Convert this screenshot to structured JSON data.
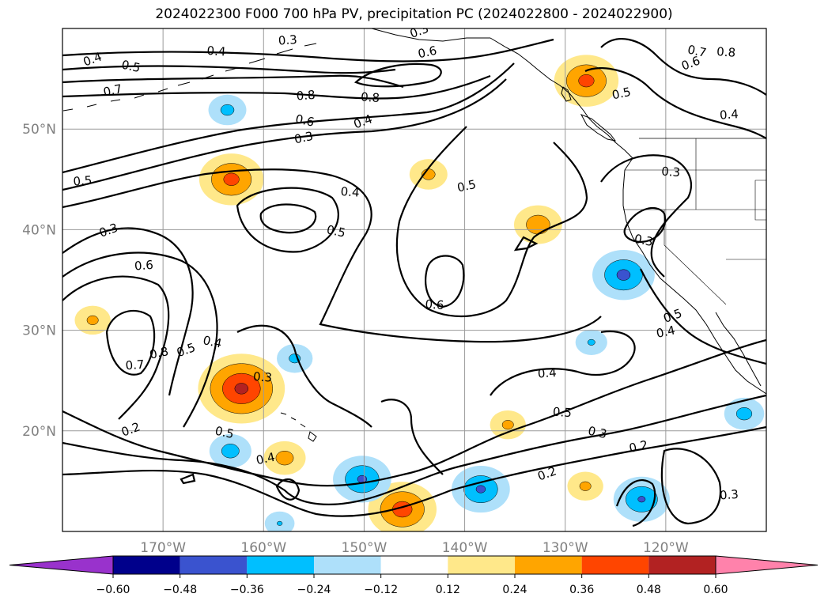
{
  "title": "2024022300 F000 700 hPa PV, precipitation PC (2024022800 - 2024022900)",
  "map": {
    "projection": "PlateCarree",
    "lon_range": [
      -180,
      -110
    ],
    "lat_range": [
      10,
      60
    ],
    "lon_ticks": [
      "170°W",
      "160°W",
      "150°W",
      "140°W",
      "130°W",
      "120°W"
    ],
    "lat_ticks": [
      "50°N",
      "40°N",
      "30°N",
      "20°N"
    ],
    "gridlines": true,
    "coastlines": true,
    "state_borders": true
  },
  "contours": {
    "variable": "700 hPa PV",
    "color": "#000000",
    "labels": [
      {
        "text": "0.3",
        "lon": -144.5,
        "lat": 59.7
      },
      {
        "text": "0.6",
        "lon": -143.7,
        "lat": 57.6
      },
      {
        "text": "0.3",
        "lon": -157.6,
        "lat": 58.8
      },
      {
        "text": "0.4",
        "lon": -164.7,
        "lat": 57.7
      },
      {
        "text": "0.5",
        "lon": -173.2,
        "lat": 56.2
      },
      {
        "text": "0.4",
        "lon": -177.0,
        "lat": 56.9
      },
      {
        "text": "0.7",
        "lon": -175.0,
        "lat": 53.8
      },
      {
        "text": "0.8",
        "lon": -155.8,
        "lat": 53.3
      },
      {
        "text": "0.8",
        "lon": -149.4,
        "lat": 53.1
      },
      {
        "text": "0.6",
        "lon": -155.9,
        "lat": 50.8
      },
      {
        "text": "0.4",
        "lon": -150.1,
        "lat": 50.7
      },
      {
        "text": "0.3",
        "lon": -156.0,
        "lat": 49.1
      },
      {
        "text": "0.5",
        "lon": -178.0,
        "lat": 44.8
      },
      {
        "text": "0.4",
        "lon": -151.4,
        "lat": 43.7
      },
      {
        "text": "0.5",
        "lon": -152.8,
        "lat": 39.8
      },
      {
        "text": "0.3",
        "lon": -175.4,
        "lat": 39.9
      },
      {
        "text": "0.5",
        "lon": -139.8,
        "lat": 44.3
      },
      {
        "text": "0.6",
        "lon": -171.9,
        "lat": 36.4
      },
      {
        "text": "0.6",
        "lon": -143.0,
        "lat": 32.5
      },
      {
        "text": "0.4",
        "lon": -165.1,
        "lat": 28.8
      },
      {
        "text": "0.5",
        "lon": -167.7,
        "lat": 28.0
      },
      {
        "text": "0.8",
        "lon": -170.4,
        "lat": 27.7
      },
      {
        "text": "0.7",
        "lon": -172.8,
        "lat": 26.5
      },
      {
        "text": "0.3",
        "lon": -160.1,
        "lat": 25.3
      },
      {
        "text": "0.5",
        "lon": -163.9,
        "lat": 19.8
      },
      {
        "text": "0.2",
        "lon": -173.2,
        "lat": 20.1
      },
      {
        "text": "0.4",
        "lon": -159.8,
        "lat": 17.2
      },
      {
        "text": "0.4",
        "lon": -131.8,
        "lat": 25.7
      },
      {
        "text": "0.5",
        "lon": -130.3,
        "lat": 21.8
      },
      {
        "text": "0.3",
        "lon": -126.8,
        "lat": 19.8
      },
      {
        "text": "0.2",
        "lon": -131.8,
        "lat": 15.7
      },
      {
        "text": "0.2",
        "lon": -122.7,
        "lat": 18.4
      },
      {
        "text": "0.3",
        "lon": -113.7,
        "lat": 13.6
      },
      {
        "text": "0.8",
        "lon": -114.0,
        "lat": 57.6
      },
      {
        "text": "0.7",
        "lon": -116.9,
        "lat": 57.7
      },
      {
        "text": "0.6",
        "lon": -117.5,
        "lat": 56.5
      },
      {
        "text": "0.5",
        "lon": -124.4,
        "lat": 53.5
      },
      {
        "text": "0.4",
        "lon": -113.7,
        "lat": 51.4
      },
      {
        "text": "0.3",
        "lon": -119.5,
        "lat": 45.7
      },
      {
        "text": "0.3",
        "lon": -122.2,
        "lat": 38.9
      },
      {
        "text": "0.5",
        "lon": -119.3,
        "lat": 31.4
      },
      {
        "text": "0.4",
        "lon": -120.0,
        "lat": 29.8
      }
    ]
  },
  "shading": {
    "variable": "precipitation PC",
    "levels": [
      -0.6,
      -0.48,
      -0.36,
      -0.24,
      -0.12,
      0.12,
      0.24,
      0.36,
      0.48,
      0.6
    ],
    "colors": [
      "#9932cc",
      "#00008b",
      "#3a53cf",
      "#00bfff",
      "#aee0fa",
      "#ffffff",
      "#ffe88a",
      "#ffa500",
      "#ff4500",
      "#b22222",
      "#ff82ab"
    ],
    "blobs": [
      {
        "lon": -162.2,
        "lat": 24.2,
        "value": 0.52
      },
      {
        "lon": -163.2,
        "lat": 45.0,
        "value": 0.41
      },
      {
        "lon": -146.2,
        "lat": 12.2,
        "value": 0.43
      },
      {
        "lon": -127.9,
        "lat": 54.8,
        "value": 0.41
      },
      {
        "lon": -157.9,
        "lat": 17.3,
        "value": 0.3
      },
      {
        "lon": -143.6,
        "lat": 45.5,
        "value": 0.28
      },
      {
        "lon": -132.7,
        "lat": 40.5,
        "value": 0.33
      },
      {
        "lon": -177.0,
        "lat": 31.0,
        "value": 0.27
      },
      {
        "lon": -135.7,
        "lat": 20.6,
        "value": 0.27
      },
      {
        "lon": -128.0,
        "lat": 14.5,
        "value": 0.27
      },
      {
        "lon": -124.2,
        "lat": 35.5,
        "value": -0.4
      },
      {
        "lon": -150.2,
        "lat": 15.2,
        "value": -0.38
      },
      {
        "lon": -138.4,
        "lat": 14.2,
        "value": -0.38
      },
      {
        "lon": -122.4,
        "lat": 13.2,
        "value": -0.37
      },
      {
        "lon": -163.3,
        "lat": 18.0,
        "value": -0.3
      },
      {
        "lon": -112.2,
        "lat": 21.7,
        "value": -0.29
      },
      {
        "lon": -163.6,
        "lat": 51.9,
        "value": -0.28
      },
      {
        "lon": -156.9,
        "lat": 27.2,
        "value": -0.27
      },
      {
        "lon": -127.4,
        "lat": 28.8,
        "value": -0.25
      },
      {
        "lon": -158.4,
        "lat": 10.8,
        "value": -0.24
      }
    ]
  },
  "colorbar": {
    "tick_labels": [
      "−0.60",
      "−0.48",
      "−0.36",
      "−0.24",
      "−0.12",
      "0.12",
      "0.24",
      "0.36",
      "0.48",
      "0.60"
    ],
    "extend": "both"
  }
}
